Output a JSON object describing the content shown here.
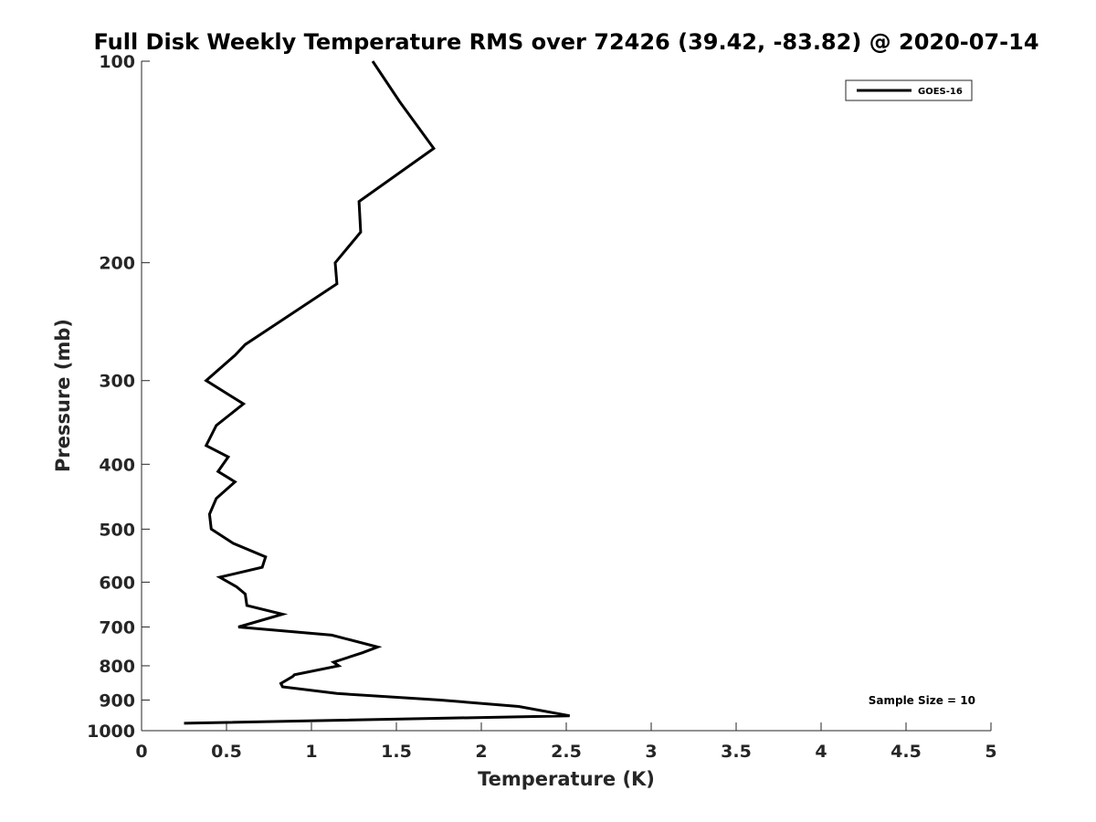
{
  "chart_data": {
    "type": "line",
    "title": "Full Disk Weekly Temperature RMS over 72426 (39.42, -83.82) @ 2020-07-14",
    "xlabel": "Temperature (K)",
    "ylabel": "Pressure (mb)",
    "xlim": [
      0,
      5
    ],
    "ylim": [
      100,
      1000
    ],
    "y_scale": "log",
    "y_reversed": true,
    "xticks": [
      0,
      0.5,
      1,
      1.5,
      2,
      2.5,
      3,
      3.5,
      4,
      4.5,
      5
    ],
    "xtick_labels": [
      "0",
      "0.5",
      "1",
      "1.5",
      "2",
      "2.5",
      "3",
      "3.5",
      "4",
      "4.5",
      "5"
    ],
    "yticks": [
      100,
      200,
      300,
      400,
      500,
      600,
      700,
      800,
      900,
      1000
    ],
    "ytick_labels": [
      "100",
      "200",
      "300",
      "400",
      "500",
      "600",
      "700",
      "800",
      "900",
      "1000"
    ],
    "grid": false,
    "legend_position": "top-right",
    "series": [
      {
        "name": "GOES-16",
        "color": "#000000",
        "points": [
          [
            1.36,
            100
          ],
          [
            1.52,
            115
          ],
          [
            1.72,
            135
          ],
          [
            1.28,
            162
          ],
          [
            1.29,
            180
          ],
          [
            1.14,
            200
          ],
          [
            1.15,
            215
          ],
          [
            0.76,
            250
          ],
          [
            0.61,
            265
          ],
          [
            0.55,
            275
          ],
          [
            0.38,
            300
          ],
          [
            0.6,
            325
          ],
          [
            0.44,
            350
          ],
          [
            0.38,
            375
          ],
          [
            0.51,
            390
          ],
          [
            0.45,
            410
          ],
          [
            0.55,
            425
          ],
          [
            0.44,
            450
          ],
          [
            0.4,
            475
          ],
          [
            0.41,
            500
          ],
          [
            0.54,
            525
          ],
          [
            0.73,
            550
          ],
          [
            0.71,
            570
          ],
          [
            0.46,
            590
          ],
          [
            0.56,
            610
          ],
          [
            0.61,
            625
          ],
          [
            0.62,
            650
          ],
          [
            0.83,
            670
          ],
          [
            0.57,
            700
          ],
          [
            1.12,
            720
          ],
          [
            1.39,
            750
          ],
          [
            1.3,
            765
          ],
          [
            1.13,
            790
          ],
          [
            1.16,
            800
          ],
          [
            0.9,
            825
          ],
          [
            0.89,
            830
          ],
          [
            0.82,
            850
          ],
          [
            0.83,
            860
          ],
          [
            1.15,
            880
          ],
          [
            1.76,
            900
          ],
          [
            2.22,
            920
          ],
          [
            2.52,
            950
          ],
          [
            0.25,
            975
          ]
        ]
      }
    ],
    "annotations": [
      "Sample Size = 10"
    ]
  }
}
